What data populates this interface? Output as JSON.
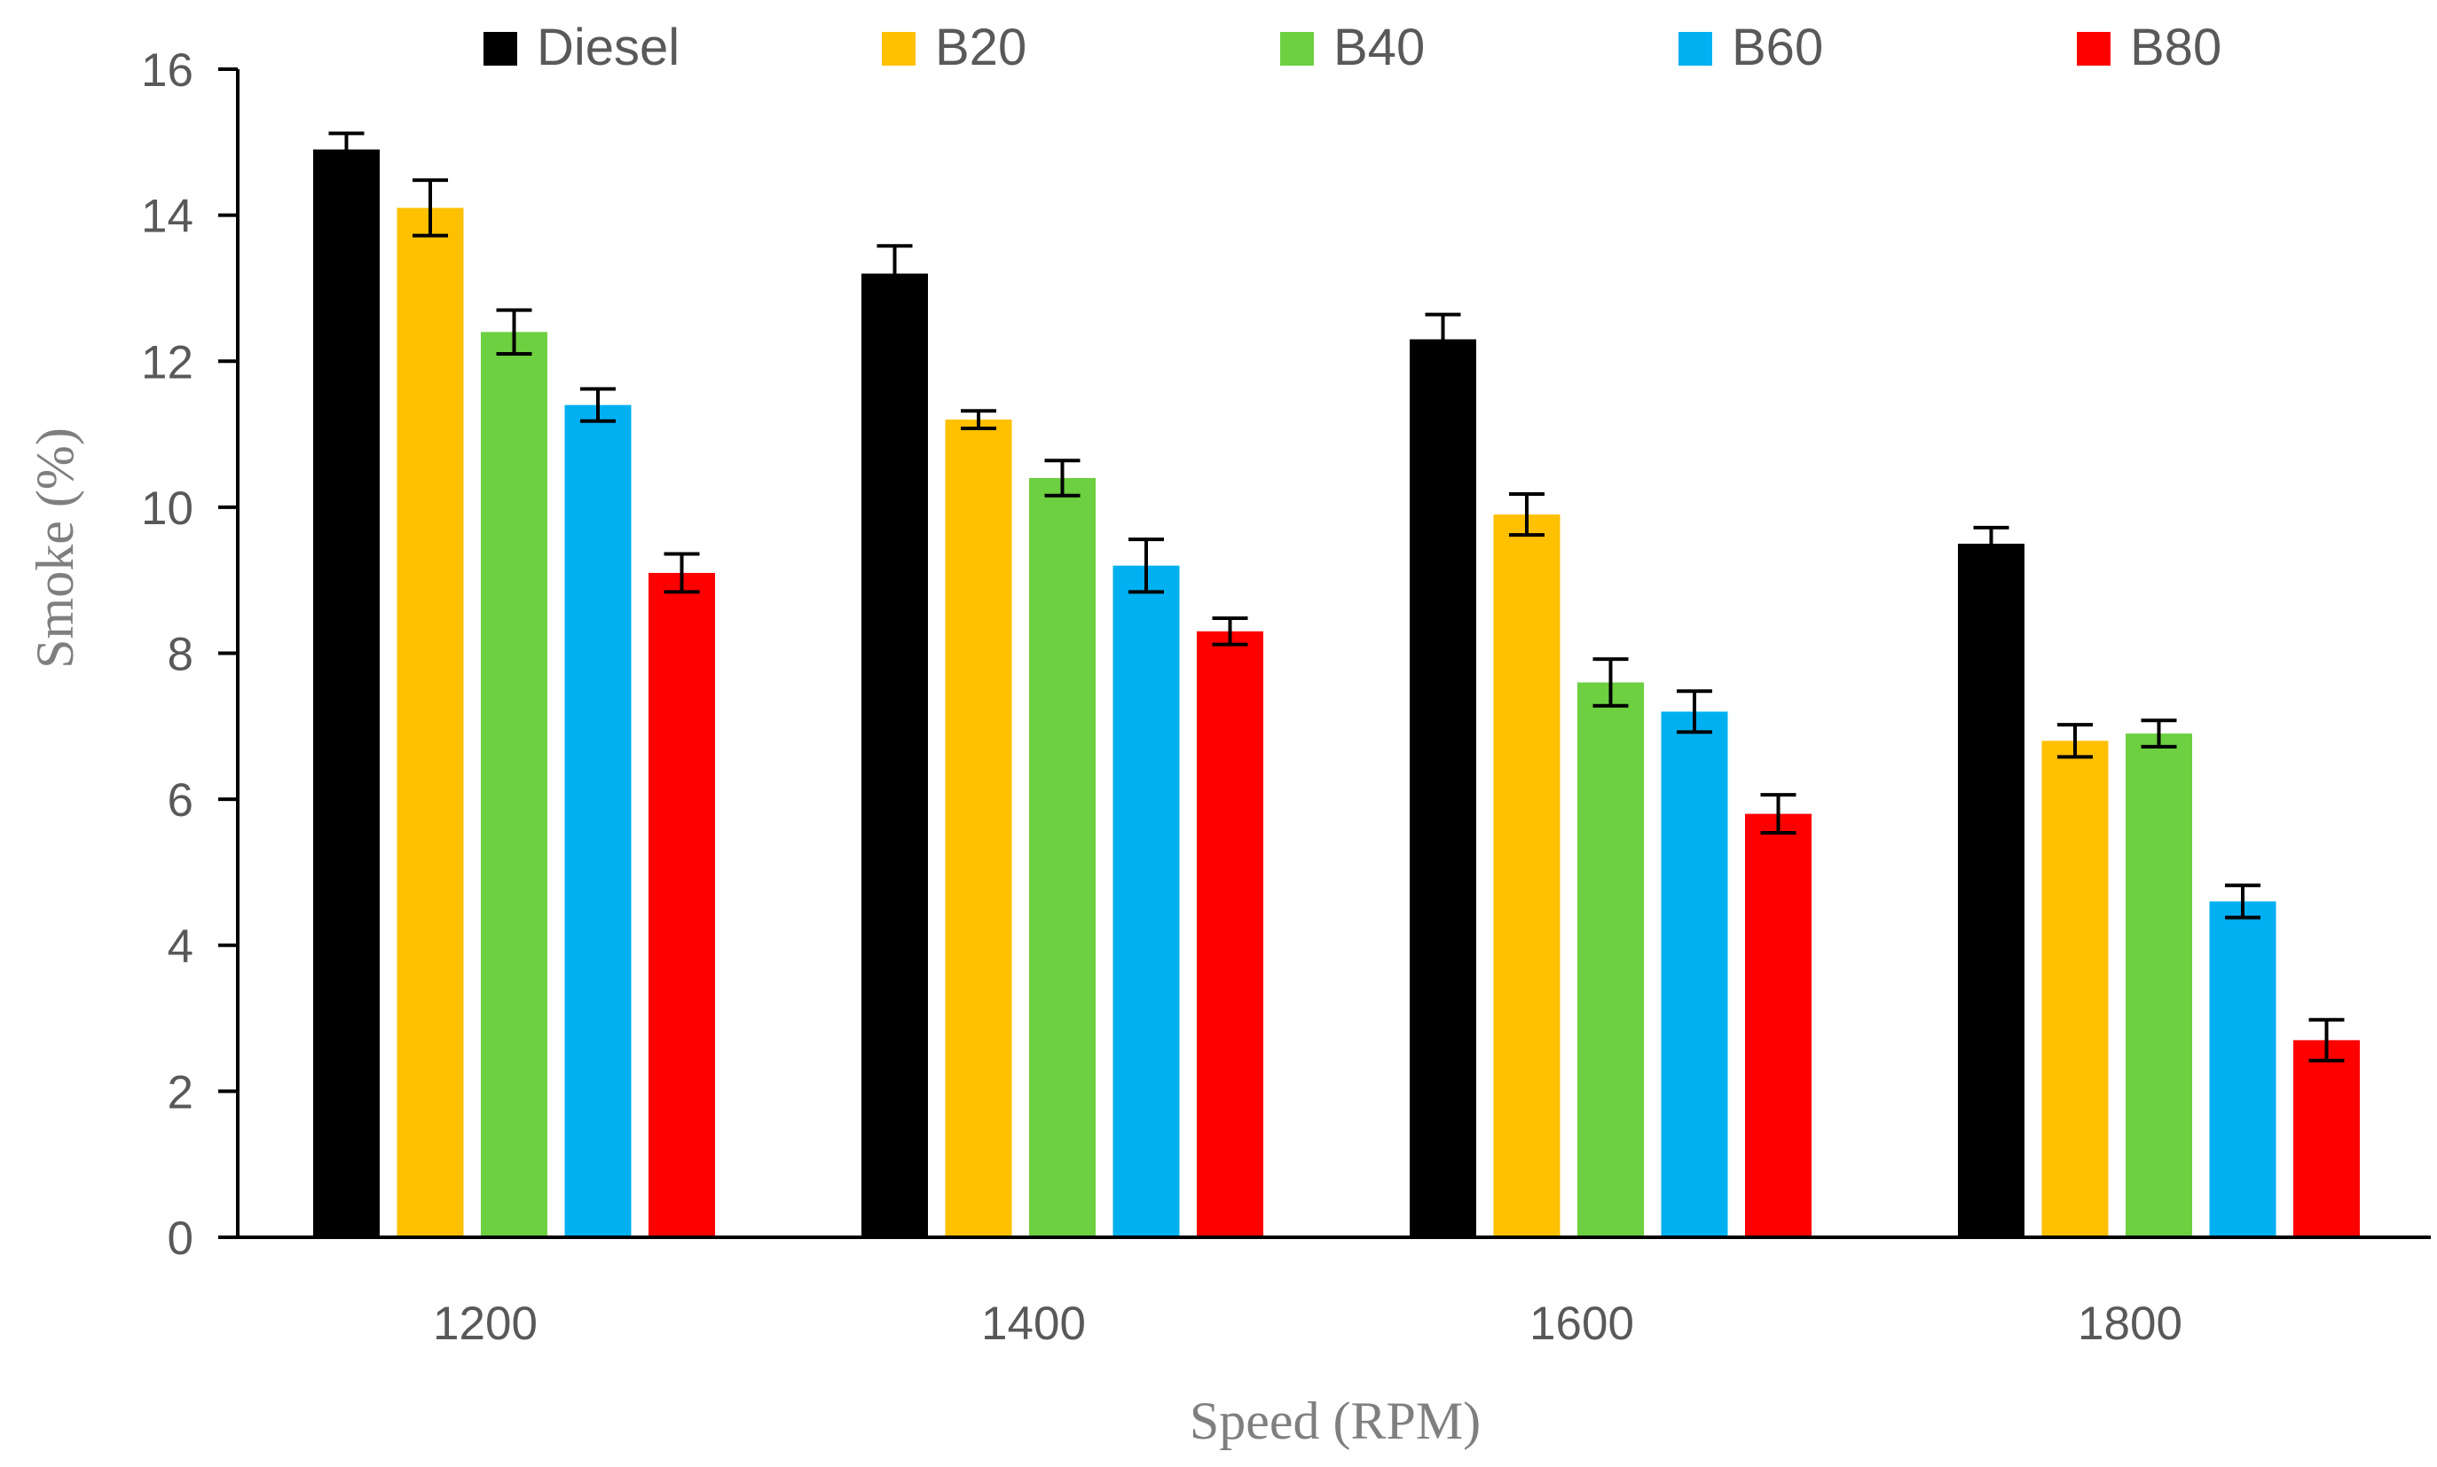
{
  "chart_data": {
    "type": "bar",
    "title": "",
    "xlabel": "Speed (RPM)",
    "ylabel": "Smoke (%)",
    "ylim": [
      0,
      16
    ],
    "yticks": [
      "0",
      "2",
      "4",
      "6",
      "8",
      "10",
      "12",
      "14",
      "16"
    ],
    "categories": [
      "1200",
      "1400",
      "1600",
      "1800"
    ],
    "legend_position": "top",
    "gridlines": false,
    "error_bars": true,
    "series": [
      {
        "name": "Diesel",
        "color": "#000000",
        "values": [
          14.9,
          13.2,
          12.3,
          9.5
        ],
        "errors": [
          0.22,
          0.38,
          0.34,
          0.22
        ]
      },
      {
        "name": "B20",
        "color": "#FFC000",
        "values": [
          14.1,
          11.2,
          9.9,
          6.8
        ],
        "errors": [
          0.38,
          0.12,
          0.28,
          0.22
        ]
      },
      {
        "name": "B40",
        "color": "#6CD040",
        "values": [
          12.4,
          10.4,
          7.6,
          6.9
        ],
        "errors": [
          0.3,
          0.24,
          0.32,
          0.18
        ]
      },
      {
        "name": "B60",
        "color": "#00B0F0",
        "values": [
          11.4,
          9.2,
          7.2,
          4.6
        ],
        "errors": [
          0.22,
          0.36,
          0.28,
          0.22
        ]
      },
      {
        "name": "B80",
        "color": "#FF0000",
        "values": [
          9.1,
          8.3,
          5.8,
          2.7
        ],
        "errors": [
          0.26,
          0.18,
          0.26,
          0.28
        ]
      }
    ]
  }
}
